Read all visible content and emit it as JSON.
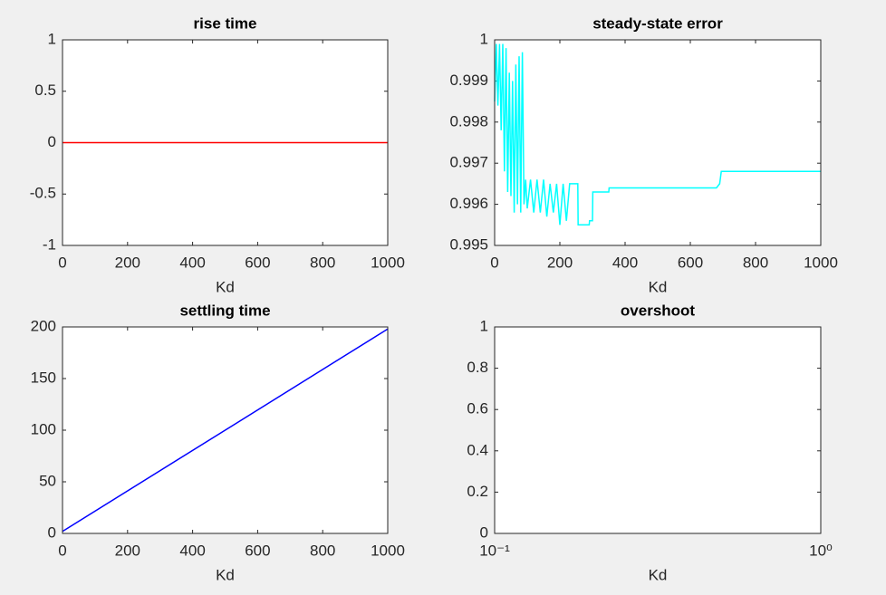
{
  "chart_data": [
    {
      "type": "line",
      "title": "rise time",
      "xlabel": "Kd",
      "xlim": [
        0,
        1000
      ],
      "ylim": [
        -1,
        1
      ],
      "xticks": [
        0,
        200,
        400,
        600,
        800,
        1000
      ],
      "yticks": [
        -1,
        -0.5,
        0,
        0.5,
        1
      ],
      "x": [
        0,
        1000
      ],
      "series": [
        {
          "color": "#ff0000",
          "values": [
            0,
            0
          ]
        }
      ]
    },
    {
      "type": "line",
      "title": "steady-state error",
      "xlabel": "Kd",
      "xlim": [
        0,
        1000
      ],
      "ylim": [
        0.995,
        1
      ],
      "xticks": [
        0,
        200,
        400,
        600,
        800,
        1000
      ],
      "yticks": [
        0.995,
        0.996,
        0.997,
        0.998,
        0.999,
        1
      ],
      "x": [
        0,
        5,
        10,
        15,
        20,
        25,
        30,
        35,
        40,
        45,
        50,
        55,
        60,
        65,
        70,
        75,
        80,
        85,
        90,
        95,
        100,
        110,
        120,
        130,
        140,
        150,
        160,
        170,
        180,
        190,
        200,
        210,
        220,
        230,
        255,
        256,
        290,
        291,
        300,
        301,
        350,
        351,
        500,
        680,
        690,
        695,
        1000
      ],
      "series": [
        {
          "color": "#00ffff",
          "values": [
            0.9985,
            0.9999,
            0.9984,
            0.9999,
            0.9978,
            0.9999,
            0.9968,
            0.9998,
            0.9963,
            0.9992,
            0.9962,
            0.999,
            0.9958,
            0.9994,
            0.996,
            0.9996,
            0.9958,
            0.9997,
            0.996,
            0.9966,
            0.9959,
            0.9966,
            0.9958,
            0.9966,
            0.9958,
            0.9966,
            0.9957,
            0.9965,
            0.9958,
            0.9965,
            0.9955,
            0.9965,
            0.9956,
            0.9965,
            0.9965,
            0.9955,
            0.9955,
            0.9956,
            0.9956,
            0.9963,
            0.9963,
            0.9964,
            0.9964,
            0.9964,
            0.9965,
            0.9968,
            0.9968
          ]
        }
      ]
    },
    {
      "type": "line",
      "title": "settling time",
      "xlabel": "Kd",
      "xlim": [
        0,
        1000
      ],
      "ylim": [
        0,
        200
      ],
      "xticks": [
        0,
        200,
        400,
        600,
        800,
        1000
      ],
      "yticks": [
        0,
        50,
        100,
        150,
        200
      ],
      "x": [
        0,
        1000
      ],
      "series": [
        {
          "color": "#0000ff",
          "values": [
            2,
            198
          ]
        }
      ]
    },
    {
      "type": "line",
      "title": "overshoot",
      "xlabel": "Kd",
      "xscale": "log",
      "xlim": [
        0.1,
        1
      ],
      "ylim": [
        0,
        1
      ],
      "xticks": [
        {
          "value": 0.1,
          "label": "10⁻¹"
        },
        {
          "value": 1,
          "label": "10⁰"
        }
      ],
      "yticks": [
        0,
        0.2,
        0.4,
        0.6,
        0.8,
        1
      ]
    }
  ]
}
